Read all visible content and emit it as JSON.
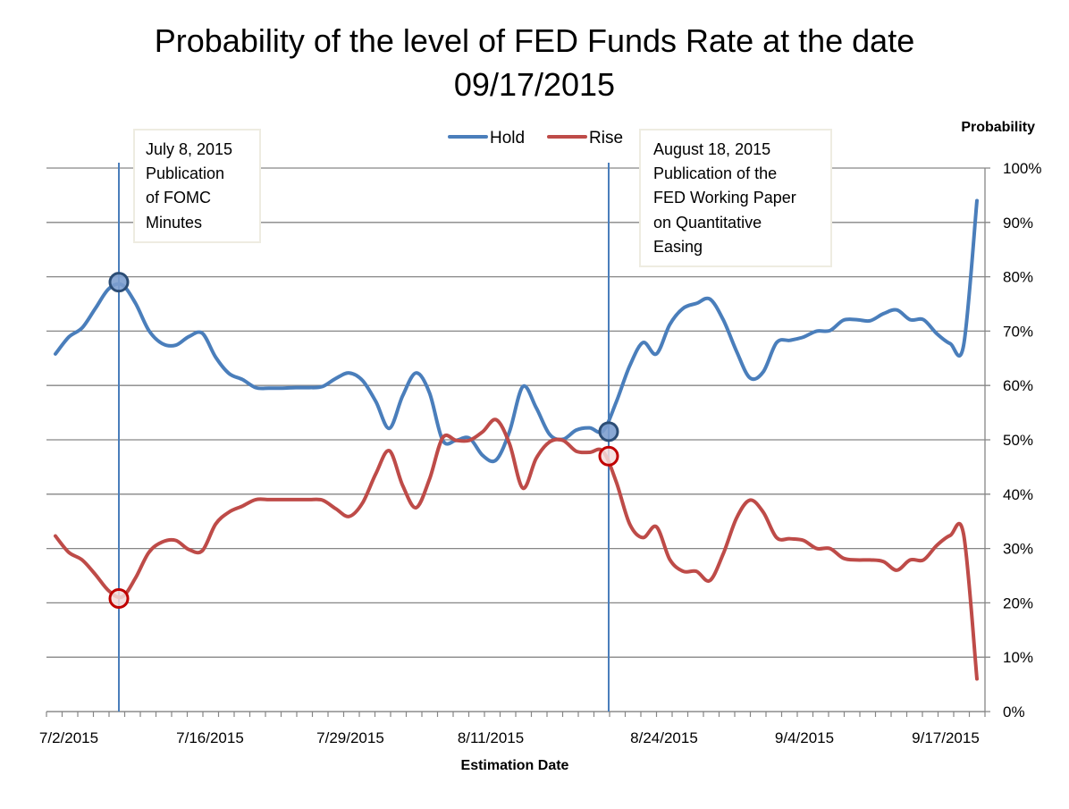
{
  "chart_data": {
    "type": "line",
    "title": [
      "Probability of the level of FED Funds Rate at the date",
      "09/17/2015"
    ],
    "xlabel": "Estimation Date",
    "ylabel": "Probability",
    "ylim": [
      0,
      100
    ],
    "y_ticks": [
      "0%",
      "10%",
      "20%",
      "30%",
      "40%",
      "50%",
      "60%",
      "70%",
      "80%",
      "90%",
      "100%"
    ],
    "x_tick_labels": [
      "7/2/2015",
      "7/16/2015",
      "7/29/2015",
      "8/11/2015",
      "8/24/2015",
      "9/4/2015",
      "9/17/2015"
    ],
    "grid": "horizontal",
    "legend_position": "top",
    "y_axis_side": "right",
    "smoothed": true,
    "series": [
      {
        "name": "Hold",
        "color": "#4a7ebb",
        "values": [
          65.8,
          68.9,
          70.6,
          74.2,
          77.8,
          78.5,
          75.1,
          70.1,
          67.7,
          67.4,
          69,
          69.6,
          65.2,
          62.2,
          61.1,
          59.6,
          59.5,
          59.5,
          59.6,
          59.6,
          59.8,
          61.3,
          62.3,
          60.9,
          57,
          52.1,
          58.1,
          62.3,
          58.7,
          49.9,
          49.9,
          50.3,
          47.1,
          46.3,
          51.5,
          59.8,
          55.9,
          51,
          50.1,
          51.8,
          52.2,
          51.6,
          57,
          63.6,
          67.9,
          65.8,
          71.2,
          74.2,
          75.1,
          75.9,
          72.1,
          66.3,
          61.4,
          62.5,
          67.9,
          68.3,
          68.9,
          70,
          70.1,
          72,
          72.1,
          71.9,
          73.2,
          73.9,
          72.1,
          72.1,
          69.5,
          67.7,
          67.4,
          94
        ]
      },
      {
        "name": "Rise",
        "color": "#be4b48",
        "values": [
          32.3,
          29.3,
          27.9,
          25.2,
          22.2,
          21.1,
          24.6,
          29.3,
          31.2,
          31.5,
          29.8,
          29.6,
          34.5,
          36.7,
          37.8,
          39,
          39,
          39,
          39,
          39,
          38.9,
          37.3,
          35.9,
          38.4,
          43.8,
          48,
          41.6,
          37.5,
          42.7,
          50.4,
          49.9,
          49.9,
          51.5,
          53.7,
          49.3,
          41.1,
          46.6,
          49.6,
          49.9,
          47.9,
          47.7,
          47.9,
          42.2,
          34.5,
          32,
          34,
          28,
          25.8,
          25.8,
          24.1,
          29,
          35.6,
          38.9,
          36.7,
          32,
          31.8,
          31.5,
          30,
          30,
          28.2,
          27.9,
          27.9,
          27.6,
          26,
          27.9,
          27.9,
          30.6,
          32.4,
          32.6,
          6
        ]
      }
    ],
    "annotations": [
      {
        "lines": [
          "July 8, 2015",
          "Publication",
          "of FOMC",
          "Minutes"
        ],
        "hold_marker": 79,
        "rise_marker": 20.8
      },
      {
        "lines": [
          "August 18, 2015",
          "Publication of the",
          "FED Working Paper",
          "on Quantitative",
          "Easing"
        ],
        "hold_marker": 51.5,
        "rise_marker": 47
      }
    ],
    "event_line_color": "#4a7ebb"
  }
}
